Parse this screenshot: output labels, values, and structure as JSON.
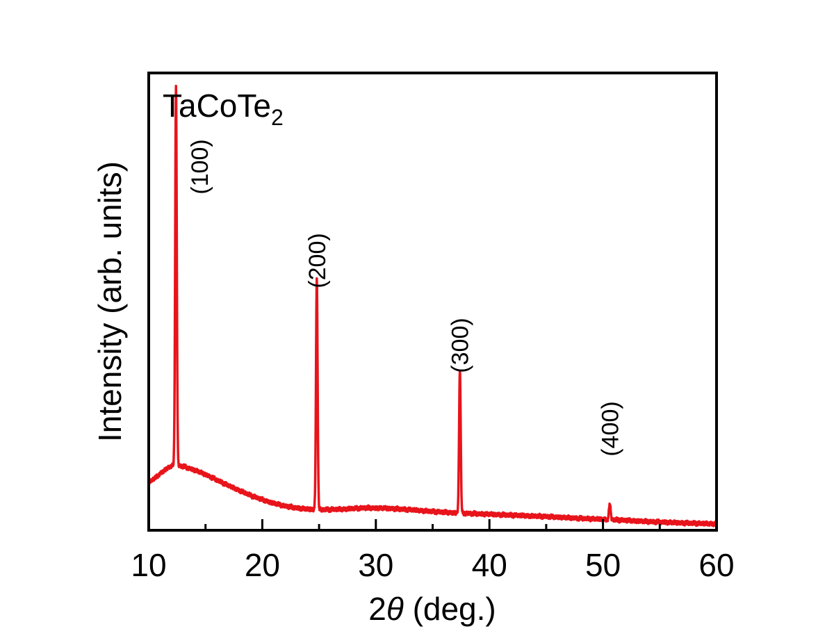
{
  "chart_data": {
    "type": "line",
    "sample_label": "TaCoTe",
    "sample_subscript": "2",
    "xlabel_prefix": "2",
    "xlabel_symbol": "θ",
    "xlabel_suffix": " (deg.)",
    "ylabel": "Intensity (arb. units)",
    "xlim": [
      10,
      60
    ],
    "ylim": [
      0,
      100
    ],
    "x_ticks": [
      "10",
      "20",
      "30",
      "40",
      "50",
      "60"
    ],
    "minor_x_ticks": [
      15,
      25,
      35,
      45,
      55
    ],
    "y_ticks_shown": false,
    "grid": false,
    "legend": "none",
    "series_color": "#e8141b",
    "baseline": [
      [
        10,
        10.5
      ],
      [
        10.6,
        11.5
      ],
      [
        11.2,
        12.8
      ],
      [
        11.8,
        13.8
      ],
      [
        12.2,
        14.2
      ],
      [
        13,
        14.0
      ],
      [
        14,
        13.2
      ],
      [
        15,
        12.2
      ],
      [
        16,
        11.0
      ],
      [
        17,
        9.8
      ],
      [
        18,
        8.7
      ],
      [
        19,
        7.6
      ],
      [
        20,
        6.7
      ],
      [
        21,
        5.9
      ],
      [
        22,
        5.3
      ],
      [
        23,
        4.9
      ],
      [
        24,
        4.6
      ],
      [
        25,
        4.5
      ],
      [
        27,
        4.6
      ],
      [
        29,
        4.9
      ],
      [
        31,
        4.8
      ],
      [
        33,
        4.5
      ],
      [
        35,
        4.1
      ],
      [
        37,
        3.8
      ],
      [
        39,
        3.6
      ],
      [
        42,
        3.3
      ],
      [
        45,
        3.0
      ],
      [
        48,
        2.6
      ],
      [
        51,
        2.3
      ],
      [
        54,
        1.9
      ],
      [
        57,
        1.6
      ],
      [
        60,
        1.4
      ]
    ],
    "peaks": [
      {
        "label": "(100)",
        "x": 12.4,
        "height": 82.8,
        "width": 0.07
      },
      {
        "label": "(200)",
        "x": 24.8,
        "height": 50.5,
        "width": 0.07
      },
      {
        "label": "(300)",
        "x": 37.4,
        "height": 31.5,
        "width": 0.07
      },
      {
        "label": "(400)",
        "x": 50.6,
        "height": 3.6,
        "width": 0.07
      }
    ]
  }
}
